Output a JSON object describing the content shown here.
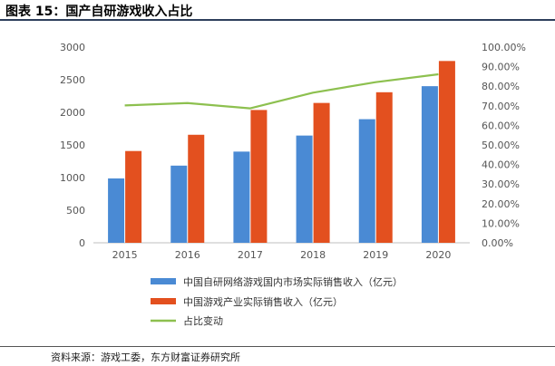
{
  "figure": {
    "title": "图表 15：国产自研游戏收入占比",
    "source": "资料来源：游戏工委，东方财富证券研究所"
  },
  "colors": {
    "domestic": "#4a8ad4",
    "industry": "#e3501f",
    "share": "#8dc04f",
    "axis": "#bfbfbf",
    "text": "#555555"
  },
  "chart_data": {
    "type": "bar",
    "categories": [
      "2015",
      "2016",
      "2017",
      "2018",
      "2019",
      "2020"
    ],
    "series": [
      {
        "name": "中国自研网络游戏国内市场实际销售收入（亿元）",
        "type": "bar",
        "axis": "left",
        "values": [
          987,
          1183,
          1398,
          1644,
          1895,
          2401
        ]
      },
      {
        "name": "中国游戏产业实际销售收入（亿元）",
        "type": "bar",
        "axis": "left",
        "values": [
          1407,
          1656,
          2036,
          2144,
          2308,
          2787
        ]
      },
      {
        "name": "占比变动",
        "type": "line",
        "axis": "right",
        "values": [
          70.2,
          71.4,
          68.7,
          76.7,
          82.1,
          86.1
        ]
      }
    ],
    "y_left": {
      "ylim": [
        0,
        3000
      ],
      "ticks": [
        "0",
        "500",
        "1000",
        "1500",
        "2000",
        "2500",
        "3000"
      ]
    },
    "y_right": {
      "ylim": [
        0,
        100
      ],
      "ticks": [
        "0.00%",
        "10.00%",
        "20.00%",
        "30.00%",
        "40.00%",
        "50.00%",
        "60.00%",
        "70.00%",
        "80.00%",
        "90.00%",
        "100.00%"
      ]
    },
    "legend_position": "bottom",
    "grid": false
  }
}
